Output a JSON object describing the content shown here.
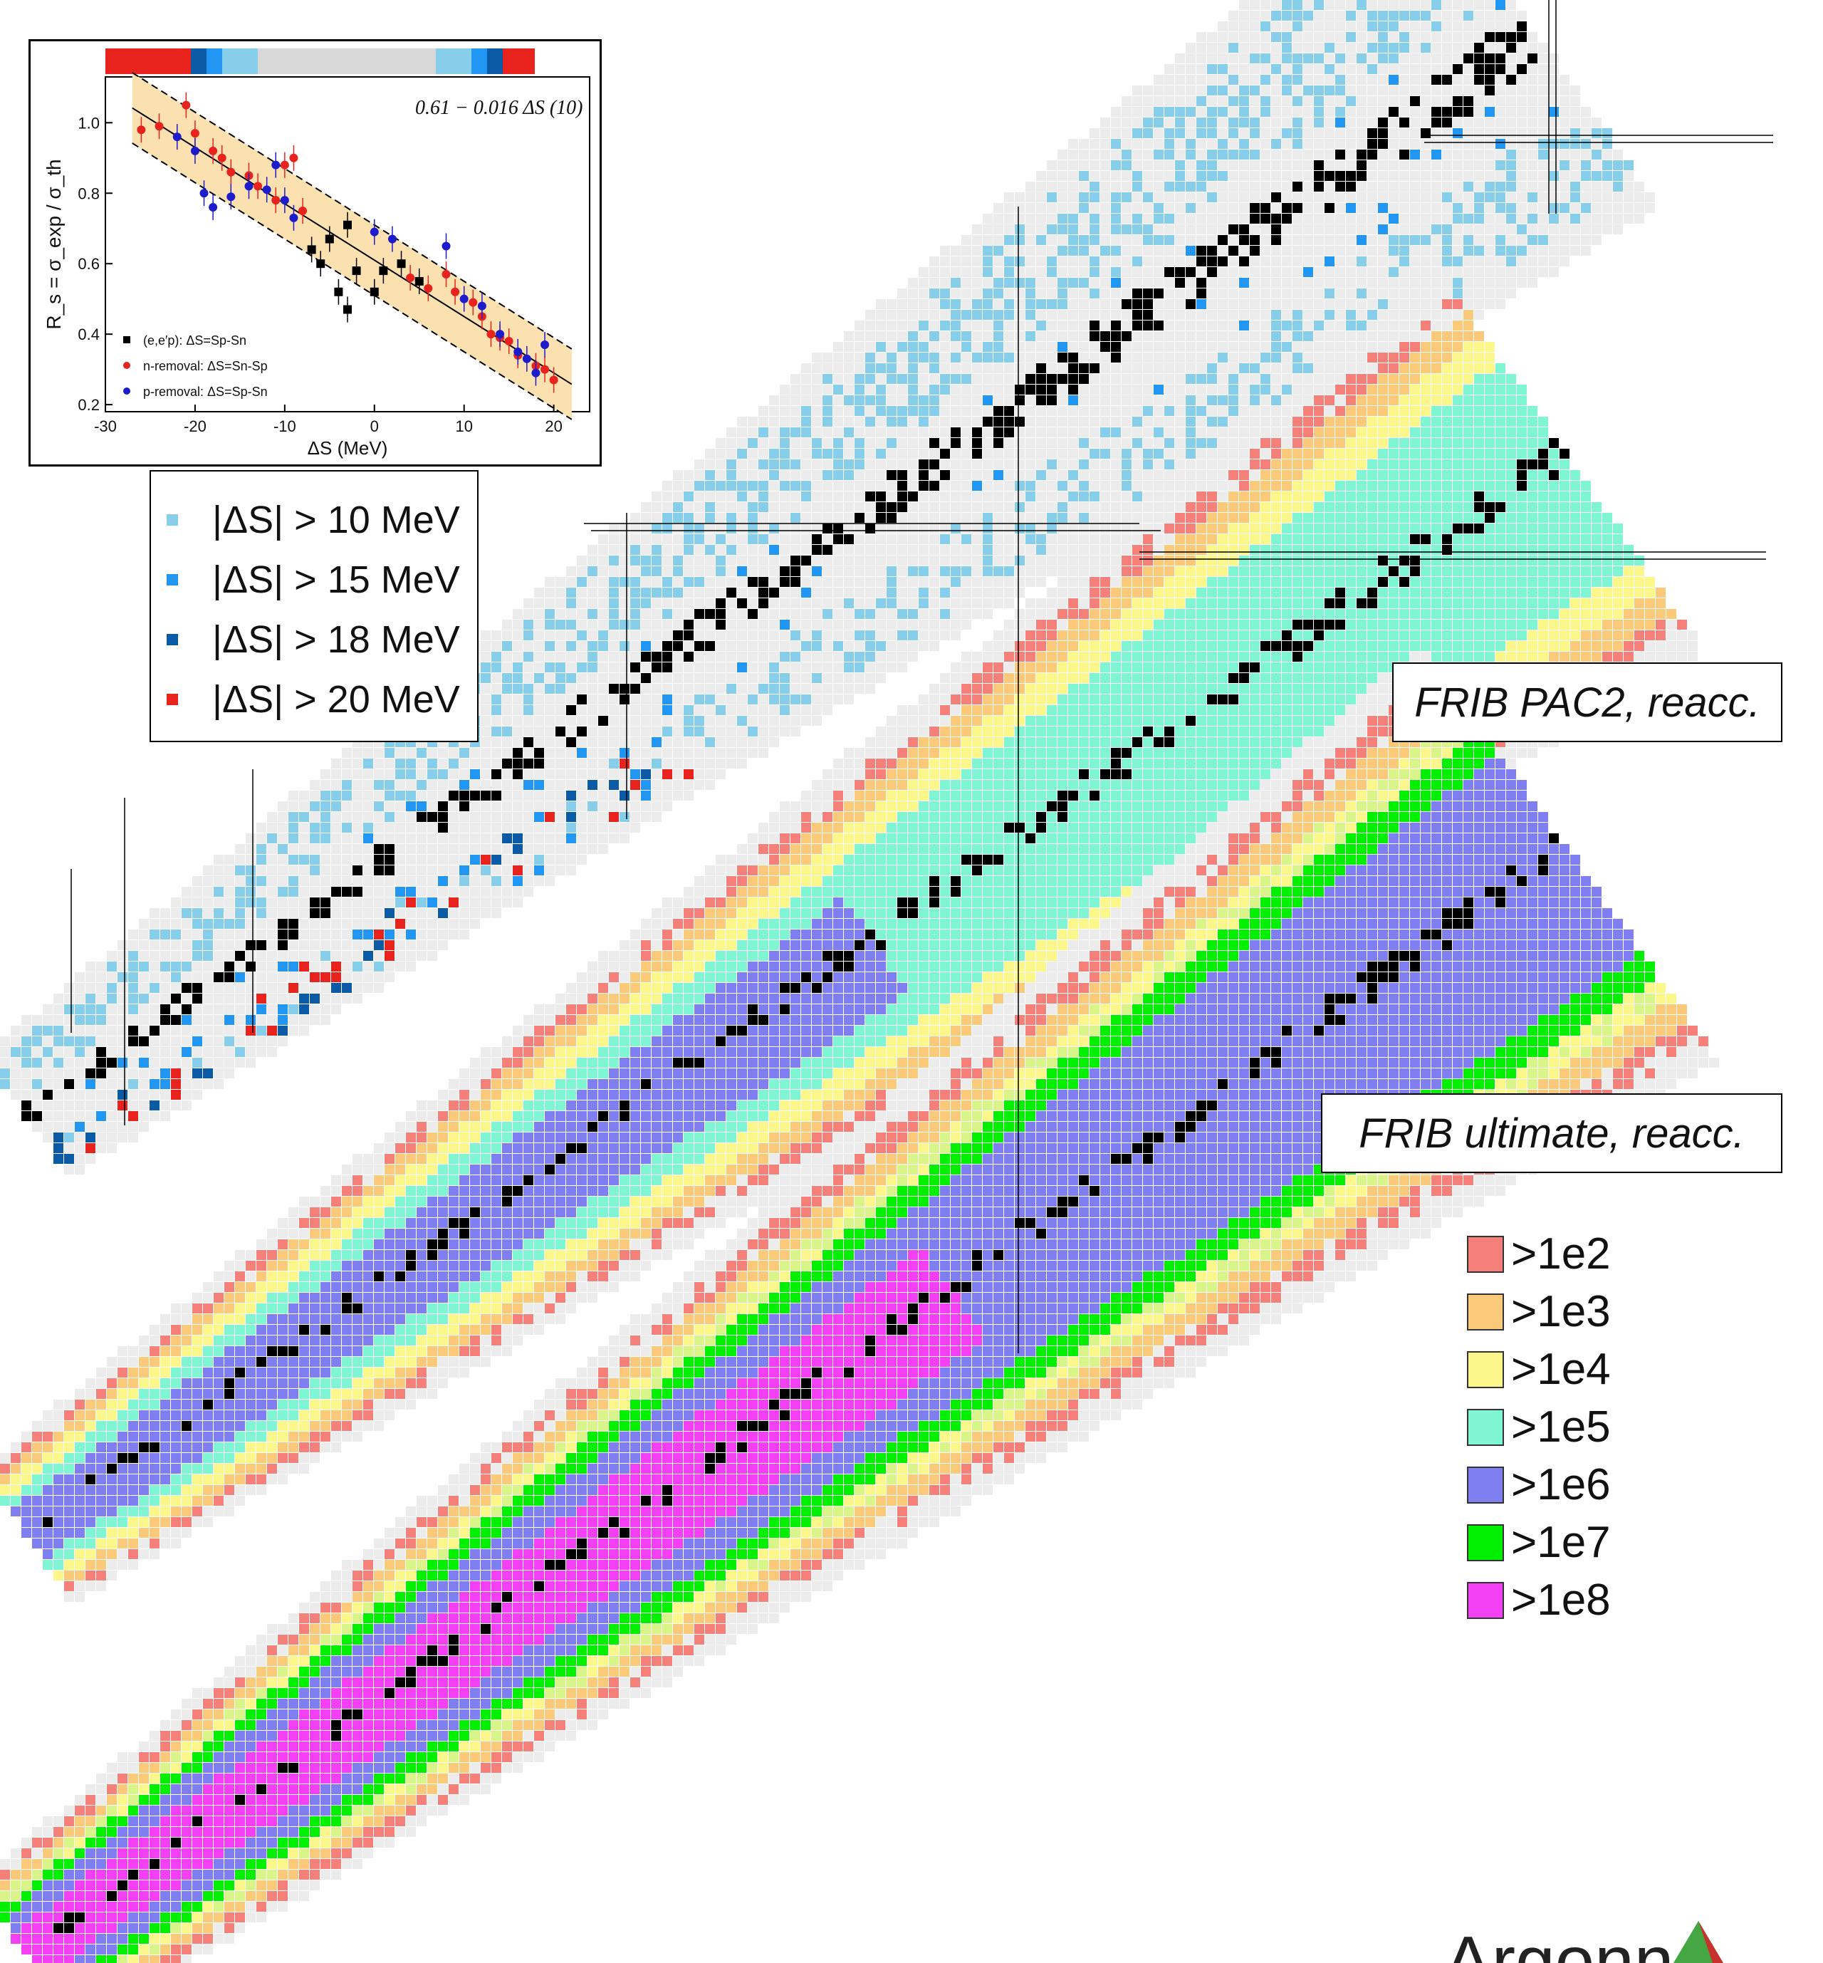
{
  "inset_chart": {
    "formula": "0.61 − 0.016 ΔS (10)",
    "xlabel": "ΔS  (MeV)",
    "ylabel": "R_s = σ_exp / σ_th",
    "x_ticks": [
      "-30",
      "-20",
      "-10",
      "0",
      "10",
      "20"
    ],
    "y_ticks": [
      "0.2",
      "0.4",
      "0.6",
      "0.8",
      "1.0"
    ],
    "legend": [
      {
        "label": "(e,e′p): ΔS=Sp-Sn",
        "color": "#000000",
        "marker": "square"
      },
      {
        "label": "n-removal: ΔS=Sn-Sp",
        "color": "#e8231e",
        "marker": "circle"
      },
      {
        "label": "p-removal: ΔS=Sp-Sn",
        "color": "#1c1ccc",
        "marker": "circle"
      }
    ],
    "bar_colors": [
      "#e8231e",
      "#0a5aa5",
      "#2196f3",
      "#87ceeb",
      "#d8d8d8",
      "#87ceeb",
      "#2196f3",
      "#0a5aa5",
      "#e8231e"
    ]
  },
  "delta_s_legend": [
    {
      "label": "|ΔS| > 10 MeV",
      "color": "#87ceeb"
    },
    {
      "label": "|ΔS| > 15 MeV",
      "color": "#2196f3"
    },
    {
      "label": "|ΔS| > 18 MeV",
      "color": "#0a5aa5"
    },
    {
      "label": "|ΔS| > 20 MeV",
      "color": "#e8231e"
    }
  ],
  "captions": {
    "pac2": "FRIB PAC2, reacc.",
    "ultimate": "FRIB ultimate, reacc."
  },
  "rate_legend": [
    {
      "label": ">1e2",
      "color": "#f5807a"
    },
    {
      "label": ">1e3",
      "color": "#fbc97a"
    },
    {
      "label": ">1e4",
      "color": "#fbf78a"
    },
    {
      "label": ">1e5",
      "color": "#7ff5d4"
    },
    {
      "label": ">1e6",
      "color": "#7f7ff2"
    },
    {
      "label": ">1e7",
      "color": "#00f000"
    },
    {
      "label": ">1e8",
      "color": "#f440f4"
    }
  ],
  "logo": {
    "text": "Argonne"
  },
  "chart_data": [
    {
      "type": "scatter",
      "title": "0.61 − 0.016 ΔS (10)",
      "xlabel": "ΔS  (MeV)",
      "ylabel": "R_s = σ_exp / σ_th",
      "xlim": [
        -30,
        24
      ],
      "ylim": [
        0.18,
        1.13
      ],
      "grid": false,
      "fit_line": {
        "intercept": 0.61,
        "slope": -0.016,
        "band": 0.1
      },
      "series": [
        {
          "name": "(e,e′p): ΔS=Sp-Sn",
          "x": [
            -7,
            -5,
            -3,
            -2,
            0,
            1,
            3,
            5,
            -4,
            -3,
            -6
          ],
          "y": [
            0.64,
            0.67,
            0.71,
            0.58,
            0.52,
            0.58,
            0.6,
            0.55,
            0.52,
            0.47,
            0.6
          ]
        },
        {
          "name": "n-removal: ΔS=Sn-Sp",
          "x": [
            -26,
            -24,
            -21,
            -20,
            -18,
            -17,
            -16,
            -14,
            -13,
            -11,
            -10,
            -9,
            -8,
            4,
            6,
            8,
            9,
            11,
            12,
            13,
            14,
            15,
            16,
            18,
            19,
            20
          ],
          "y": [
            0.98,
            0.99,
            1.05,
            0.97,
            0.92,
            0.9,
            0.86,
            0.85,
            0.82,
            0.78,
            0.88,
            0.9,
            0.75,
            0.56,
            0.53,
            0.57,
            0.52,
            0.49,
            0.45,
            0.4,
            0.39,
            0.38,
            0.34,
            0.31,
            0.3,
            0.27
          ]
        },
        {
          "name": "p-removal: ΔS=Sp-Sn",
          "x": [
            -22,
            -20,
            -19,
            -18,
            -16,
            -14,
            -12,
            -11,
            -10,
            -9,
            0,
            2,
            8,
            10,
            12,
            14,
            16,
            17,
            18,
            19
          ],
          "y": [
            0.96,
            0.92,
            0.8,
            0.76,
            0.79,
            0.82,
            0.81,
            0.88,
            0.78,
            0.73,
            0.69,
            0.67,
            0.65,
            0.5,
            0.48,
            0.4,
            0.35,
            0.33,
            0.29,
            0.37
          ]
        }
      ]
    },
    {
      "type": "heatmap",
      "title": "",
      "note": "nuclide chart colored by |ΔS| categories (top band)",
      "categories": [
        "|ΔS| > 10 MeV",
        "|ΔS| > 15 MeV",
        "|ΔS| > 18 MeV",
        "|ΔS| > 20 MeV"
      ]
    },
    {
      "type": "heatmap",
      "title": "FRIB PAC2, reacc.",
      "categories": [
        ">1e2",
        ">1e3",
        ">1e4",
        ">1e5",
        ">1e6"
      ]
    },
    {
      "type": "heatmap",
      "title": "FRIB ultimate, reacc.",
      "categories": [
        ">1e2",
        ">1e3",
        ">1e4",
        ">1e5",
        ">1e6",
        ">1e7",
        ">1e8"
      ]
    }
  ]
}
